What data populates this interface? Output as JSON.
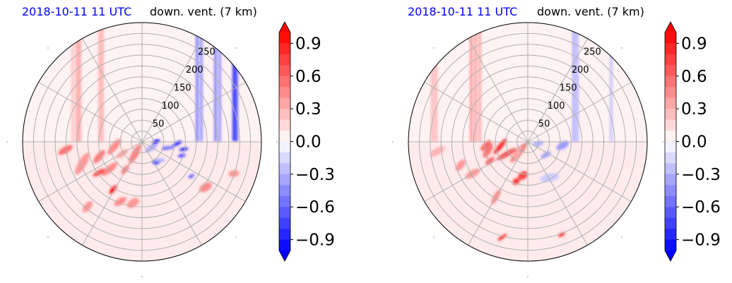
{
  "panels": [
    {
      "time_label": "2018-10-11 11 UTC",
      "field_label": "down. vent. (7 km)",
      "chart_data": {
        "type": "polar-contourf",
        "radial_ticks": [
          50,
          100,
          150,
          200,
          250
        ],
        "colorbar": {
          "min": -1.0,
          "max": 1.0,
          "step": 0.1,
          "extend": "both",
          "tick_labels": [
            "0.9",
            "0.6",
            "0.3",
            "0.0",
            "−0.3",
            "−0.6",
            "−0.9"
          ],
          "tick_values": [
            0.9,
            0.6,
            0.3,
            0.0,
            -0.3,
            -0.6,
            -0.9
          ],
          "colormap": "bwr"
        },
        "background_value": 0.05
      }
    },
    {
      "time_label": "2018-10-11 11 UTC",
      "field_label": "down. vent. (7 km)",
      "chart_data": {
        "type": "polar-contourf",
        "radial_ticks": [
          50,
          100,
          150,
          200,
          250
        ],
        "colorbar": {
          "min": -1.0,
          "max": 1.0,
          "step": 0.1,
          "extend": "both",
          "tick_labels": [
            "0.9",
            "0.6",
            "0.3",
            "0.0",
            "−0.3",
            "−0.6",
            "−0.9"
          ],
          "tick_values": [
            0.9,
            0.6,
            0.3,
            0.0,
            -0.3,
            -0.6,
            -0.9
          ],
          "colormap": "bwr"
        },
        "background_value": 0.05
      }
    }
  ]
}
